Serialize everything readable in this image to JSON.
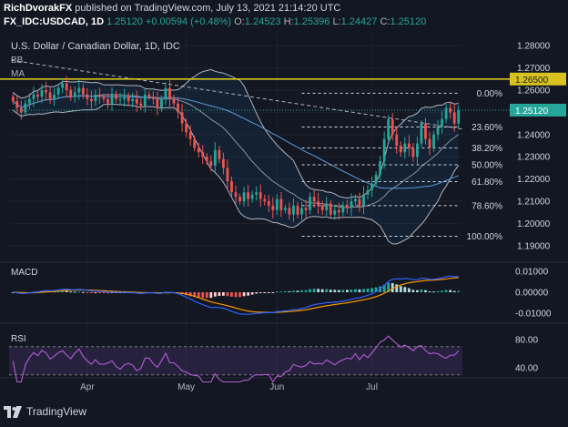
{
  "header": {
    "author": "RichDvorakFX",
    "published_text": "published on TradingView.com, July 13, 2021 21:14:20 UTC",
    "symbol": "FX_IDC:USDCAD, 1D",
    "last": "1.25120",
    "change": "+0.00594 (+0.48%)",
    "o_label": "O:",
    "o": "1.24523",
    "h_label": "H:",
    "h": "1.25396",
    "l_label": "L:",
    "l": "1.24427",
    "c_label": "C:",
    "c": "1.25120"
  },
  "main_pane": {
    "title": "U.S. Dollar / Canadian Dollar, 1D, IDC",
    "indicators": [
      "BB",
      "MA"
    ],
    "hline_label": "1.26500",
    "last_price_label": "1.25120",
    "fib_levels": [
      {
        "label": "0.00%",
        "price": 1.2586
      },
      {
        "label": "23.60%",
        "price": 1.2434
      },
      {
        "label": "38.20%",
        "price": 1.234
      },
      {
        "label": "50.00%",
        "price": 1.2264
      },
      {
        "label": "61.80%",
        "price": 1.2188
      },
      {
        "label": "78.60%",
        "price": 1.208
      },
      {
        "label": "100.00%",
        "price": 1.1942
      }
    ]
  },
  "macd_pane": {
    "title": "MACD",
    "ticks": [
      "0.01000",
      "0.00000",
      "-0.01000"
    ]
  },
  "rsi_pane": {
    "title": "RSI",
    "ticks": [
      "80.00",
      "40.00"
    ]
  },
  "x_labels": [
    "Apr",
    "May",
    "Jun",
    "Jul"
  ],
  "footer": {
    "brand": "TradingView"
  },
  "colors": {
    "up": "#26a69a",
    "down": "#ef5350",
    "hline": "#d8c21f",
    "rsi": "#b45cd6",
    "macd": "#2962ff",
    "signal": "#ff9800"
  },
  "chart_data": {
    "type": "candlestick",
    "title": "U.S. Dollar / Canadian Dollar, 1D, IDC",
    "ylim": [
      1.185,
      1.285
    ],
    "y_ticks": [
      1.28,
      1.27,
      1.26,
      1.25,
      1.24,
      1.23,
      1.22,
      1.21,
      1.2,
      1.19
    ],
    "x_ticks": [
      "Apr",
      "May",
      "Jun",
      "Jul"
    ],
    "horizontal_line": 1.265,
    "close": [
      1.255,
      1.252,
      1.25,
      1.254,
      1.256,
      1.258,
      1.257,
      1.26,
      1.259,
      1.256,
      1.258,
      1.261,
      1.263,
      1.26,
      1.257,
      1.259,
      1.261,
      1.258,
      1.256,
      1.255,
      1.258,
      1.257,
      1.256,
      1.254,
      1.258,
      1.256,
      1.256,
      1.257,
      1.255,
      1.256,
      1.254,
      1.253,
      1.258,
      1.257,
      1.256,
      1.252,
      1.256,
      1.261,
      1.256,
      1.254,
      1.25,
      1.245,
      1.241,
      1.238,
      1.234,
      1.232,
      1.23,
      1.228,
      1.226,
      1.233,
      1.229,
      1.225,
      1.219,
      1.214,
      1.212,
      1.21,
      1.214,
      1.211,
      1.213,
      1.214,
      1.211,
      1.21,
      1.208,
      1.206,
      1.211,
      1.206,
      1.207,
      1.204,
      1.208,
      1.204,
      1.207,
      1.206,
      1.212,
      1.21,
      1.208,
      1.206,
      1.209,
      1.204,
      1.206,
      1.205,
      1.208,
      1.207,
      1.21,
      1.211,
      1.208,
      1.213,
      1.215,
      1.218,
      1.222,
      1.228,
      1.238,
      1.247,
      1.24,
      1.235,
      1.232,
      1.236,
      1.234,
      1.23,
      1.236,
      1.245,
      1.238,
      1.234,
      1.24,
      1.244,
      1.247,
      1.252,
      1.25,
      1.245,
      1.251
    ]
  }
}
